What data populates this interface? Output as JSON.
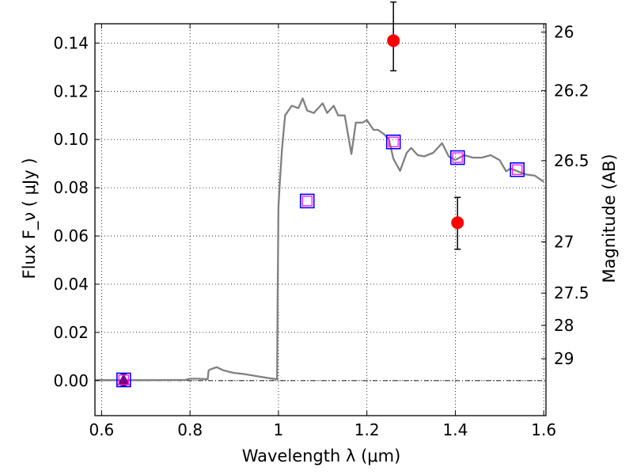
{
  "chart_data": {
    "type": "scatter",
    "xlabel": "Wavelength  λ (μm)",
    "ylabel_left": "Flux  F_ν  ( μJy )",
    "ylabel_right": "Magnitude (AB)",
    "xlim": [
      0.585,
      1.605
    ],
    "ylim": [
      -0.0145,
      0.148
    ],
    "x_ticks": [
      0.6,
      0.8,
      1.0,
      1.2,
      1.4,
      1.6
    ],
    "x_tick_labels": [
      "0.6",
      "0.8",
      "1",
      "1.2",
      "1.4",
      "1.6"
    ],
    "y_ticks": [
      0.0,
      0.02,
      0.04,
      0.06,
      0.08,
      0.1,
      0.12,
      0.14
    ],
    "y_tick_labels": [
      "0.00",
      "0.02",
      "0.04",
      "0.06",
      "0.08",
      "0.10",
      "0.12",
      "0.14"
    ],
    "right_ticks": [
      26,
      26.2,
      26.5,
      27,
      27.5,
      28,
      29
    ],
    "right_tick_labels": [
      "26",
      "26.2",
      "26.5",
      "27",
      "27.5",
      "28",
      "29"
    ],
    "grid": true,
    "zero_line": true,
    "colors": {
      "sed": "#808080",
      "measured": "#ff0000",
      "model_box": "#0000ff",
      "model_inner": "#ff00ff",
      "upper_limit": "#800080"
    },
    "sed": {
      "name": "",
      "x": [
        0.585,
        0.7,
        0.79,
        0.8,
        0.82,
        0.84,
        0.842,
        0.845,
        0.86,
        0.875,
        0.89,
        0.9,
        0.92,
        0.94,
        0.96,
        0.98,
        0.997,
        0.998,
        1.0,
        1.003,
        1.008,
        1.015,
        1.03,
        1.045,
        1.055,
        1.065,
        1.08,
        1.1,
        1.11,
        1.125,
        1.135,
        1.15,
        1.165,
        1.175,
        1.19,
        1.2,
        1.215,
        1.225,
        1.24,
        1.25,
        1.26,
        1.275,
        1.29,
        1.3,
        1.315,
        1.33,
        1.35,
        1.37,
        1.385,
        1.4,
        1.42,
        1.44,
        1.46,
        1.48,
        1.5,
        1.515,
        1.525,
        1.545,
        1.56,
        1.58,
        1.6
      ],
      "y": [
        0.0002,
        0.0002,
        0.0003,
        0.0008,
        0.0008,
        0.0006,
        0.0041,
        0.0046,
        0.0056,
        0.0043,
        0.0036,
        0.0032,
        0.0028,
        0.0022,
        0.0016,
        0.001,
        0.0006,
        0.03,
        0.072,
        0.082,
        0.096,
        0.11,
        0.114,
        0.113,
        0.117,
        0.112,
        0.111,
        0.115,
        0.111,
        0.114,
        0.11,
        0.11,
        0.094,
        0.107,
        0.107,
        0.108,
        0.104,
        0.104,
        0.102,
        0.1,
        0.092,
        0.087,
        0.0945,
        0.0965,
        0.0935,
        0.093,
        0.0945,
        0.0985,
        0.093,
        0.0915,
        0.0935,
        0.0925,
        0.0925,
        0.0935,
        0.0915,
        0.0868,
        0.088,
        0.0865,
        0.0855,
        0.085,
        0.0825
      ]
    },
    "measured": {
      "name": "",
      "points": [
        {
          "x": 1.26,
          "y": 0.141,
          "yerr_low": 0.0125,
          "yerr_high": 0.016
        },
        {
          "x": 1.405,
          "y": 0.0655,
          "yerr_low": 0.011,
          "yerr_high": 0.0105
        }
      ]
    },
    "model_photometry": {
      "name": "",
      "points": [
        {
          "x": 0.65,
          "y": 0.0003
        },
        {
          "x": 1.065,
          "y": 0.0745
        },
        {
          "x": 1.26,
          "y": 0.099
        },
        {
          "x": 1.405,
          "y": 0.0925
        },
        {
          "x": 1.54,
          "y": 0.0875
        }
      ]
    },
    "upper_limit": {
      "x": 0.65,
      "y": 0.0003,
      "yerr_low": 0.0025,
      "yerr_high": 0.0025
    }
  }
}
